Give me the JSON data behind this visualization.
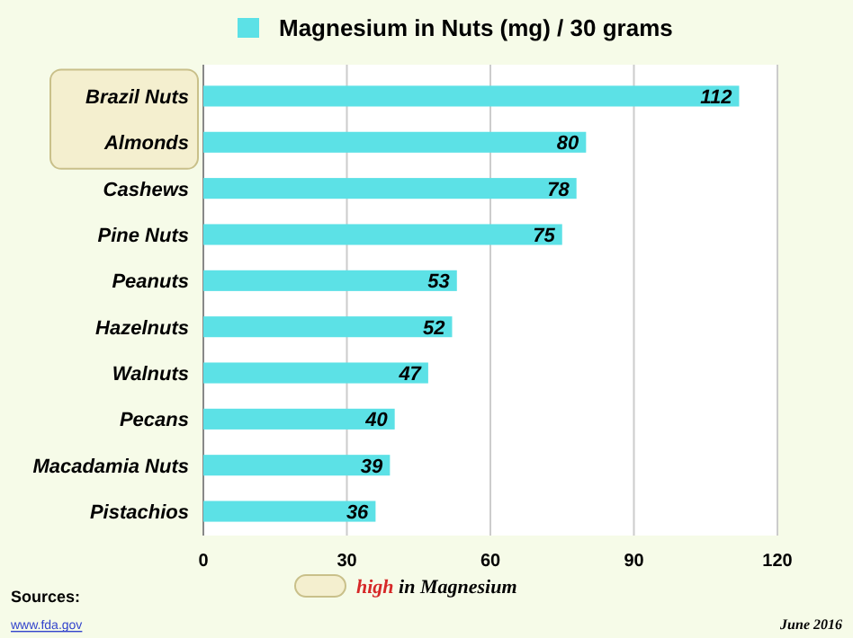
{
  "chart_data": {
    "type": "bar",
    "orientation": "horizontal",
    "categories": [
      "Brazil Nuts",
      "Almonds",
      "Cashews",
      "Pine Nuts",
      "Peanuts",
      "Hazelnuts",
      "Walnuts",
      "Pecans",
      "Macadamia Nuts",
      "Pistachios"
    ],
    "series": [
      {
        "name": "Magnesium in Nuts (mg) / 30 grams",
        "color": "#5ce1e6",
        "values": [
          112,
          80,
          78,
          75,
          53,
          52,
          47,
          40,
          39,
          36
        ]
      }
    ],
    "xlim": [
      0,
      120
    ],
    "xticks": [
      0,
      30,
      60,
      90,
      120
    ],
    "grid": "x",
    "legend": "top",
    "data_labels": true,
    "annotations": [
      "high in Magnesium",
      "Sources:",
      "www.fda.gov",
      "June 2016"
    ]
  }
}
